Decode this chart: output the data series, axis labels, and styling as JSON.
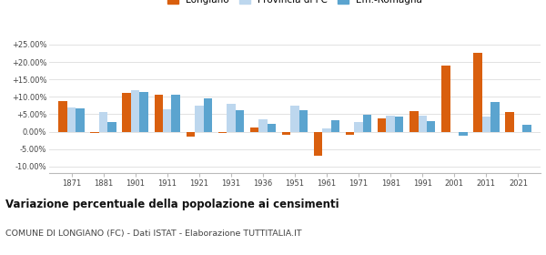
{
  "years": [
    1871,
    1881,
    1901,
    1911,
    1921,
    1931,
    1936,
    1951,
    1961,
    1971,
    1981,
    1991,
    2001,
    2011,
    2021
  ],
  "longiano": [
    8.8,
    -0.5,
    11.0,
    10.5,
    -1.5,
    -0.5,
    1.2,
    -0.8,
    -6.8,
    -0.8,
    3.9,
    6.0,
    19.0,
    22.5,
    5.5
  ],
  "provincia_fc": [
    7.0,
    5.5,
    12.0,
    6.5,
    7.5,
    8.0,
    3.5,
    7.5,
    0.9,
    2.8,
    4.5,
    4.5,
    0.0,
    4.2,
    0.0
  ],
  "em_romagna": [
    6.8,
    2.8,
    11.5,
    10.5,
    9.5,
    6.2,
    2.2,
    6.2,
    3.3,
    4.9,
    4.4,
    3.0,
    -1.2,
    8.6,
    2.0
  ],
  "color_longiano": "#d95f0e",
  "color_provincia": "#bdd7ee",
  "color_em": "#5ba4cf",
  "title": "Variazione percentuale della popolazione ai censimenti",
  "subtitle": "COMUNE DI LONGIANO (FC) - Dati ISTAT - Elaborazione TUTTITALIA.IT",
  "legend_labels": [
    "Longiano",
    "Provincia di FC",
    "Em.-Romagna"
  ],
  "yticks": [
    -10.0,
    -5.0,
    0.0,
    5.0,
    10.0,
    15.0,
    20.0,
    25.0
  ],
  "ylim": [
    -12.0,
    29.0
  ],
  "bar_width": 0.27
}
